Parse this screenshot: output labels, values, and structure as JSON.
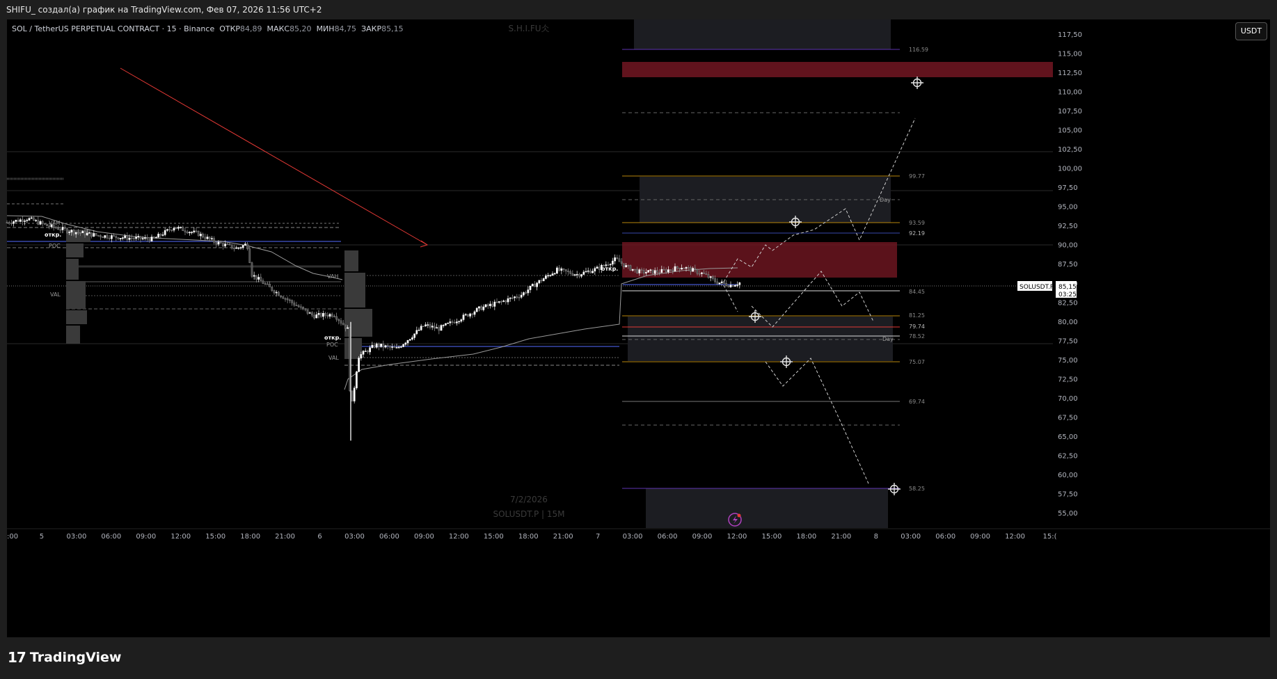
{
  "window_title": "SHIFU_ создал(а) график на TradingView.com, Фев 07, 2026 11:56 UTC+2",
  "legend": {
    "symbol": "SOL / TetherUS PERPETUAL CONTRACT · 15 · Binance",
    "open_label": "ОТКР",
    "open": "84,89",
    "high_label": "МАКС",
    "high": "85,20",
    "low_label": "МИН",
    "low": "84,75",
    "close_label": "ЗАКР",
    "close": "85,15"
  },
  "currency_button": "USDT",
  "watermark": {
    "top": "S.H.I.FU仌",
    "date": "7/2/2026",
    "ticker": "SOLUSDT.P | 15M"
  },
  "price_badge": {
    "symbol": "SOLUSDT.P",
    "price": "85,15",
    "countdown": "03:25"
  },
  "brand": {
    "name": "TradingView"
  },
  "colors": {
    "background": "#000000",
    "up": "#ffffff",
    "down": "#4a4a4a",
    "supply_zone": "#6b1520",
    "poc_line": "#3949ab",
    "arrow": "#e53935"
  },
  "chart_data": {
    "type": "candlestick",
    "y_axis": {
      "range": [
        53.0,
        119.5
      ],
      "ticks": [
        "117,50",
        "115,00",
        "112,50",
        "110,00",
        "107,50",
        "105,00",
        "102,50",
        "100,00",
        "97,50",
        "95,00",
        "92,50",
        "90,00",
        "87,50",
        "85,00",
        "82,50",
        "80,00",
        "77,50",
        "75,00",
        "72,50",
        "70,00",
        "67,50",
        "65,00",
        "62,50",
        "60,00",
        "57,50",
        "55,00"
      ]
    },
    "x_axis": {
      "ticks": [
        ":00",
        "5",
        "03:00",
        "06:00",
        "09:00",
        "12:00",
        "15:00",
        "18:00",
        "21:00",
        "6",
        "03:00",
        "06:00",
        "09:00",
        "12:00",
        "15:00",
        "18:00",
        "21:00",
        "7",
        "03:00",
        "06:00",
        "09:00",
        "12:00",
        "15:00",
        "18:00",
        "21:00",
        "8",
        "03:00",
        "06:00",
        "09:00",
        "12:00",
        "15:("
      ]
    },
    "level_labels": [
      "116.59",
      "99.77",
      "93.59",
      "92.19",
      "84.45",
      "81.25",
      "79.74",
      "78.52",
      "75.07",
      "69.74",
      "58.25"
    ],
    "profile_labels": [
      "VAH",
      "POC",
      "VAL",
      "VAH",
      "POC",
      "VAL",
      "откр.",
      "откр.",
      "откр.",
      "Day",
      "Day"
    ],
    "price_path": [
      [
        0,
        93.0
      ],
      [
        30,
        93.5
      ],
      [
        60,
        92.5
      ],
      [
        95,
        91.8
      ],
      [
        130,
        91.3
      ],
      [
        170,
        91.0
      ],
      [
        210,
        90.8
      ],
      [
        240,
        92.4
      ],
      [
        275,
        91.5
      ],
      [
        300,
        90.4
      ],
      [
        330,
        89.6
      ],
      [
        345,
        90.2
      ],
      [
        352,
        86.2
      ],
      [
        380,
        84.3
      ],
      [
        410,
        82.5
      ],
      [
        440,
        80.8
      ],
      [
        470,
        81.0
      ],
      [
        490,
        79.0
      ],
      [
        494,
        68.0
      ],
      [
        505,
        75.5
      ],
      [
        530,
        77.0
      ],
      [
        560,
        76.5
      ],
      [
        580,
        78.0
      ],
      [
        600,
        79.6
      ],
      [
        620,
        79.1
      ],
      [
        650,
        80.4
      ],
      [
        680,
        81.8
      ],
      [
        710,
        82.6
      ],
      [
        740,
        83.6
      ],
      [
        760,
        85.0
      ],
      [
        790,
        86.8
      ],
      [
        820,
        86.2
      ],
      [
        850,
        87.0
      ],
      [
        875,
        88.2
      ],
      [
        890,
        87.2
      ],
      [
        910,
        86.5
      ],
      [
        940,
        86.6
      ],
      [
        970,
        87.2
      ],
      [
        1000,
        86.3
      ],
      [
        1020,
        85.2
      ],
      [
        1040,
        84.8
      ],
      [
        1054,
        85.15
      ]
    ]
  }
}
